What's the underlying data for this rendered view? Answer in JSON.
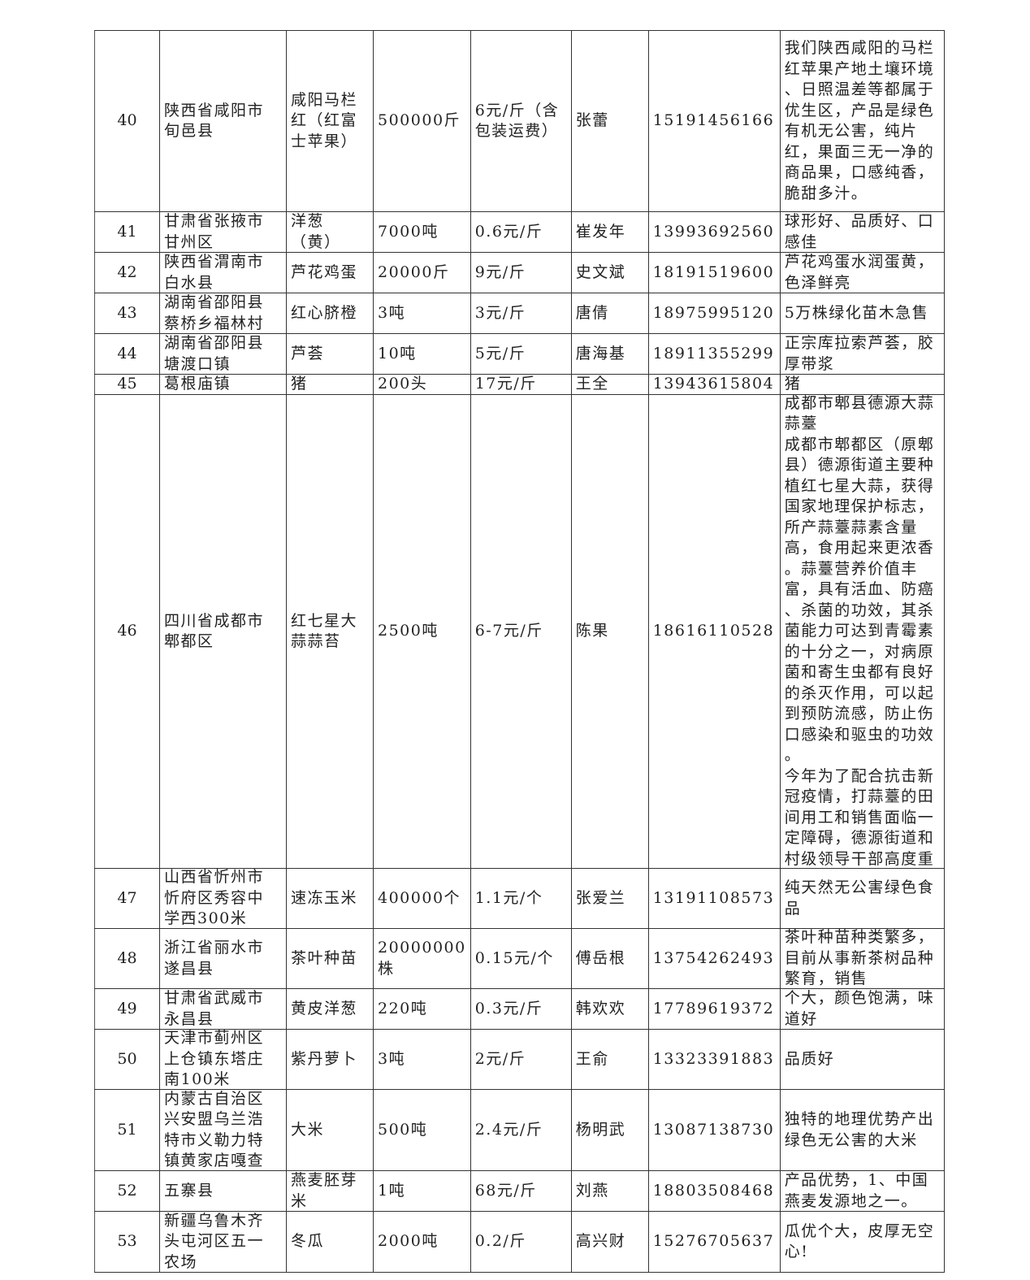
{
  "rows": [
    {
      "no": "40",
      "place": "陕西省咸阳市\n旬邑县",
      "product": "咸阳马栏\n红（红富\n士苹果）",
      "qty": "500000斤",
      "price": "6元/斤（含\n包装运费）",
      "contact": "张蕾",
      "phone": "15191456166",
      "desc": "我们陕西咸阳的马栏\n红苹果产地土壤环境\n、日照温差等都属于\n优生区，产品是绿色\n有机无公害，纯片\n红，果面三无一净的\n商品果，口感纯香，\n脆甜多汁。"
    },
    {
      "no": "41",
      "place": "甘肃省张掖市\n甘州区",
      "product": "洋葱\n（黄）",
      "qty": "7000吨",
      "price": "0.6元/斤",
      "contact": "崔发年",
      "phone": "13993692560",
      "desc": "球形好、品质好、口\n感佳"
    },
    {
      "no": "42",
      "place": "陕西省渭南市\n白水县",
      "product": "芦花鸡蛋",
      "qty": "20000斤",
      "price": "9元/斤",
      "contact": "史文斌",
      "phone": "18191519600",
      "desc": "芦花鸡蛋水润蛋黄，\n色泽鲜亮"
    },
    {
      "no": "43",
      "place": "湖南省邵阳县\n蔡桥乡福林村",
      "product": "红心脐橙",
      "qty": "3吨",
      "price": "3元/斤",
      "contact": "唐倩",
      "phone": "18975995120",
      "desc": "5万株绿化苗木急售"
    },
    {
      "no": "44",
      "place": "湖南省邵阳县\n塘渡口镇",
      "product": "芦荟",
      "qty": "10吨",
      "price": "5元/斤",
      "contact": "唐海基",
      "phone": "18911355299",
      "desc": "正宗库拉索芦荟，胶\n厚带浆"
    },
    {
      "no": "45",
      "place": "葛根庙镇",
      "product": "猪",
      "qty": "200头",
      "price": "17元/斤",
      "contact": "王全",
      "phone": "13943615804",
      "desc": "猪"
    },
    {
      "no": "46",
      "place": "四川省成都市\n郫都区",
      "product": "红七星大\n蒜蒜苔",
      "qty": "2500吨",
      "price": "6-7元/斤",
      "contact": "陈果",
      "phone": "18616110528",
      "desc": "成都市郫县德源大蒜\n蒜薹\n成都市郫都区（原郫\n县）德源街道主要种\n植红七星大蒜，获得\n国家地理保护标志，\n所产蒜薹蒜素含量\n高，食用起来更浓香\n。蒜薹营养价值丰\n富，具有活血、防癌\n、杀菌的功效，其杀\n菌能力可达到青霉素\n的十分之一，对病原\n菌和寄生虫都有良好\n的杀灭作用，可以起\n到预防流感，防止伤\n口感染和驱虫的功效\n。\n今年为了配合抗击新\n冠疫情，打蒜薹的田\n间用工和销售面临一\n定障碍，德源街道和\n村级领导干部高度重"
    },
    {
      "no": "47",
      "place": "山西省忻州市\n忻府区秀容中\n学西300米",
      "product": "速冻玉米",
      "qty": "400000个",
      "price": "1.1元/个",
      "contact": "张爱兰",
      "phone": "13191108573",
      "desc": "纯天然无公害绿色食\n品"
    },
    {
      "no": "48",
      "place": "浙江省丽水市\n遂昌县",
      "product": "茶叶种苗",
      "qty": "20000000\n株",
      "price": "0.15元/个",
      "contact": "傅岳根",
      "phone": "13754262493",
      "desc": "茶叶种苗种类繁多，\n目前从事新茶树品种\n繁育，销售"
    },
    {
      "no": "49",
      "place": "甘肃省武威市\n永昌县",
      "product": "黄皮洋葱",
      "qty": "220吨",
      "price": "0.3元/斤",
      "contact": "韩欢欢",
      "phone": "17789619372",
      "desc": "个大，颜色饱满，味\n道好"
    },
    {
      "no": "50",
      "place": "天津市蓟州区\n上仓镇东塔庄\n南100米",
      "product": "紫丹萝卜",
      "qty": "3吨",
      "price": "2元/斤",
      "contact": "王俞",
      "phone": "13323391883",
      "desc": "品质好"
    },
    {
      "no": "51",
      "place": "内蒙古自治区\n兴安盟乌兰浩\n特市义勒力特\n镇黄家店嘎查",
      "product": "大米",
      "qty": "500吨",
      "price": "2.4元/斤",
      "contact": "杨明武",
      "phone": "13087138730",
      "desc": "独特的地理优势产出\n绿色无公害的大米"
    },
    {
      "no": "52",
      "place": "五寨县",
      "product": "燕麦胚芽\n米",
      "qty": "1吨",
      "price": "68元/斤",
      "contact": "刘燕",
      "phone": "18803508468",
      "desc": "产品优势，1、中国\n燕麦发源地之一。"
    },
    {
      "no": "53",
      "place": "新疆乌鲁木齐\n头屯河区五一\n农场",
      "product": "冬瓜",
      "qty": "2000吨",
      "price": "0.2/斤",
      "contact": "高兴财",
      "phone": "15276705637",
      "desc": "瓜优个大，皮厚无空\n心!"
    }
  ]
}
